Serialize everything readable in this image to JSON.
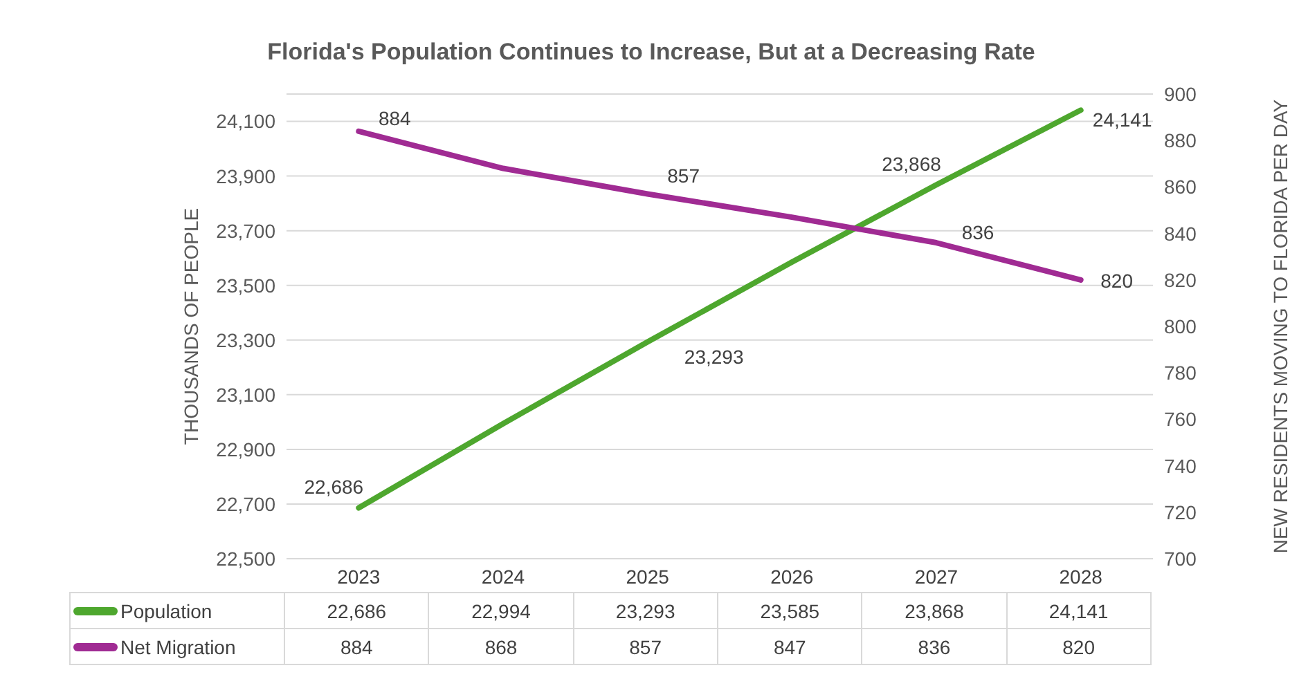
{
  "chart_data": {
    "type": "line",
    "title": "Florida's Population Continues to Increase, But at a Decreasing Rate",
    "ylabel": "THOUSANDS OF PEOPLE",
    "y2label": "NEW RESIDENTS MOVING TO FLORIDA PER DAY",
    "categories": [
      "2023",
      "2024",
      "2025",
      "2026",
      "2027",
      "2028"
    ],
    "series": [
      {
        "name": "Population",
        "color": "#4ea72e",
        "values": [
          22686,
          22994,
          23293,
          23585,
          23868,
          24141
        ],
        "value_labels": [
          "22,686",
          "22,994",
          "23,293",
          "23,585",
          "23,868",
          "24,141"
        ]
      },
      {
        "name": "Net Migration",
        "color": "#a02b93",
        "axis": "y2",
        "values": [
          884,
          868,
          857,
          847,
          836,
          820
        ],
        "value_labels": [
          "884",
          "868",
          "857",
          "847",
          "836",
          "820"
        ]
      }
    ],
    "ylim": [
      22500,
      24200
    ],
    "yticks": [
      "22,500",
      "22,700",
      "22,900",
      "23,100",
      "23,300",
      "23,500",
      "23,700",
      "23,900",
      "24,100"
    ],
    "y2lim": [
      700,
      900
    ],
    "y2ticks": [
      700,
      720,
      740,
      760,
      780,
      800,
      820,
      840,
      860,
      880,
      900
    ],
    "grid": "y",
    "legend": "bottom",
    "marker": "none",
    "line_style": "solid"
  }
}
